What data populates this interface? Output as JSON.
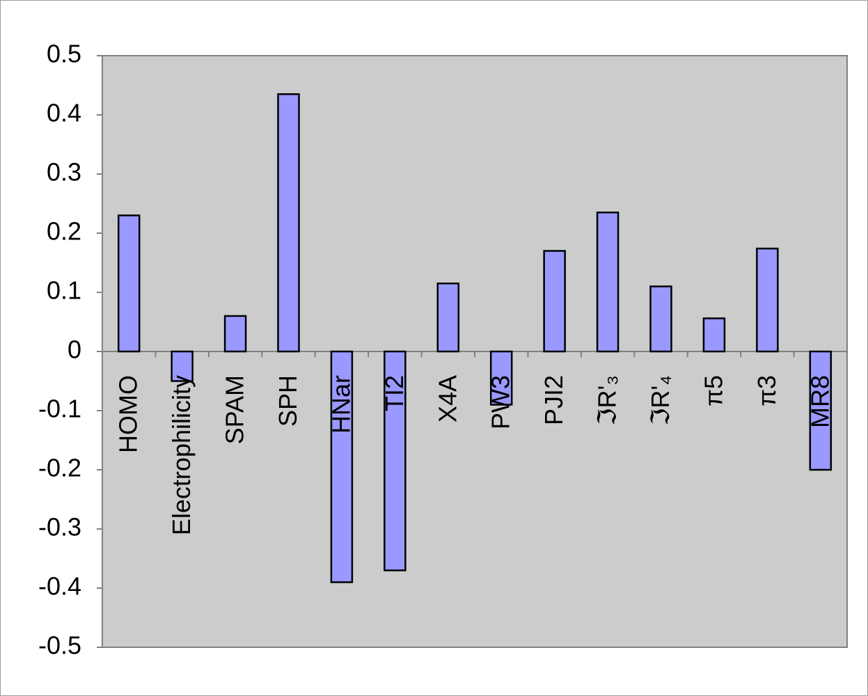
{
  "chart_data": {
    "type": "bar",
    "categories": [
      "HOMO",
      "Electrophilicity",
      "SPAM",
      "SPH",
      "HNar",
      "TI2",
      "X4A",
      "PW3",
      "PJI2",
      "ℑR'₃",
      "ℑR'₄",
      "π5",
      "π3",
      "MR8"
    ],
    "values": [
      0.23,
      -0.05,
      0.06,
      0.435,
      -0.39,
      -0.37,
      0.115,
      -0.09,
      0.17,
      0.235,
      0.11,
      0.056,
      0.174,
      -0.2
    ],
    "color": "#9999ff",
    "ylim": [
      -0.5,
      0.5
    ],
    "yticks": [
      -0.5,
      -0.4,
      -0.3,
      -0.2,
      -0.1,
      0,
      0.1,
      0.2,
      0.3,
      0.4,
      0.5
    ]
  }
}
